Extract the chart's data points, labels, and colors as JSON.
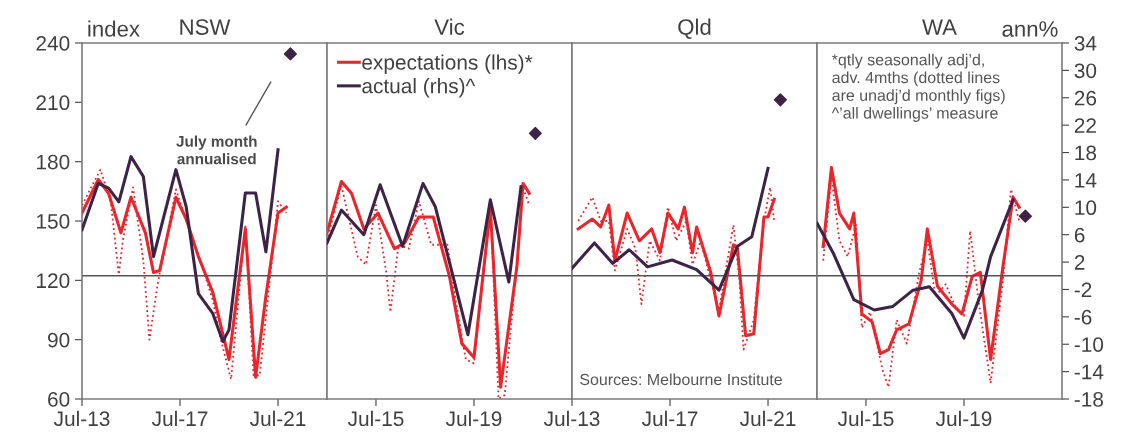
{
  "chart_data": [
    {
      "type": "line",
      "title": "NSW",
      "ylabel": "index",
      "tick_labels": [
        "x",
        "y"
      ],
      "grid": false,
      "legend": false,
      "xlim": [
        "2013-07",
        "2023-07"
      ],
      "xticks": [
        {
          "value": "2013-07",
          "label": "Jul-13"
        },
        {
          "value": "2017-07",
          "label": "Jul-17"
        },
        {
          "value": "2021-07",
          "label": "Jul-21"
        }
      ],
      "ylim": [
        60,
        240
      ],
      "yticks": [
        60,
        90,
        120,
        150,
        180,
        210,
        240
      ],
      "y2lim": [
        -18,
        34
      ],
      "ref_lines": [
        {
          "axis": "y2",
          "value": 0
        }
      ],
      "annotations": [
        "July month\nannualised"
      ],
      "series": [
        {
          "type": "line",
          "color": "#e8262b",
          "line_style": "solid",
          "x": [
            "2013-07",
            "2014-03",
            "2014-08",
            "2015-02",
            "2015-07",
            "2016-02",
            "2016-06",
            "2016-09",
            "2017-05",
            "2017-10",
            "2018-04",
            "2018-11",
            "2019-07",
            "2020-03",
            "2020-08",
            "2021-01",
            "2021-07",
            "2021-11"
          ],
          "values": [
            154,
            171,
            164,
            144,
            162,
            144,
            124,
            125,
            162,
            151,
            132,
            114,
            80,
            146,
            71,
            112,
            154,
            157
          ]
        },
        {
          "type": "line",
          "color": "#e8262b",
          "line_style": "dotted",
          "x": [
            "2013-07",
            "2014-04",
            "2014-09",
            "2015-01",
            "2015-03",
            "2015-08",
            "2016-01",
            "2016-04",
            "2016-08",
            "2017-05",
            "2017-11",
            "2018-05",
            "2018-11",
            "2019-03",
            "2019-08",
            "2020-03",
            "2020-07",
            "2020-10",
            "2021-03",
            "2021-07",
            "2021-11"
          ],
          "values": [
            158,
            176,
            160,
            123,
            140,
            167,
            130,
            90,
            118,
            166,
            147,
            130,
            110,
            90,
            70,
            148,
            72,
            72,
            120,
            160,
            154
          ]
        },
        {
          "type": "line",
          "axis": "y2",
          "color": "#3d2447",
          "line_style": "solid",
          "x": [
            "2013-07",
            "2014-03",
            "2014-08",
            "2015-01",
            "2015-07",
            "2016-01",
            "2016-06",
            "2017-05",
            "2017-10",
            "2018-04",
            "2018-11",
            "2019-04",
            "2019-07",
            "2020-03",
            "2020-08",
            "2021-01",
            "2021-07"
          ],
          "values": [
            6.7,
            13.5,
            12.8,
            10.8,
            17.4,
            14.5,
            2.8,
            15.5,
            10.1,
            -2.6,
            -5.5,
            -9.6,
            -7.9,
            12.1,
            12.1,
            3.5,
            18.4
          ]
        },
        {
          "type": "scatter",
          "axis": "y2",
          "marker": "diamond",
          "color": "#3d2447",
          "x": [
            "2022-01"
          ],
          "values": [
            32.4
          ]
        }
      ]
    },
    {
      "type": "line",
      "title": "Vic",
      "tick_labels": "x",
      "grid": false,
      "legend": "top left",
      "xlim": [
        "2013-07",
        "2023-07"
      ],
      "xticks": [
        {
          "value": "2015-07",
          "label": "Jul-15"
        },
        {
          "value": "2019-07",
          "label": "Jul-19"
        }
      ],
      "ylim": [
        60,
        240
      ],
      "y2lim": [
        -18,
        34
      ],
      "ref_lines": [
        {
          "axis": "y2",
          "value": 0
        }
      ],
      "series": [
        {
          "type": "line",
          "name": "expectations (lhs)*",
          "color": "#e8262b",
          "line_style": "solid",
          "x": [
            "2013-07",
            "2014-02",
            "2014-07",
            "2015-01",
            "2015-08",
            "2016-04",
            "2016-09",
            "2017-04",
            "2017-11",
            "2018-07",
            "2019-01",
            "2019-07",
            "2020-03",
            "2020-08",
            "2021-04",
            "2021-07",
            "2021-10"
          ],
          "values": [
            144,
            170,
            164,
            146,
            154,
            136,
            139,
            152,
            152,
            122,
            88,
            81,
            156,
            66,
            127,
            169,
            164
          ]
        },
        {
          "type": "line",
          "color": "#e8262b",
          "line_style": "dotted",
          "x": [
            "2013-07",
            "2014-02",
            "2014-06",
            "2014-10",
            "2015-02",
            "2015-07",
            "2015-12",
            "2016-02",
            "2016-06",
            "2016-11",
            "2017-04",
            "2017-10",
            "2018-06",
            "2018-10",
            "2019-03",
            "2019-07",
            "2020-03",
            "2020-07",
            "2020-10",
            "2021-05",
            "2021-07",
            "2021-10"
          ],
          "values": [
            140,
            168,
            150,
            132,
            128,
            158,
            124,
            104,
            138,
            136,
            160,
            138,
            138,
            110,
            80,
            78,
            160,
            60,
            62,
            140,
            167,
            158
          ]
        },
        {
          "type": "line",
          "name": "actual (rhs)^",
          "axis": "y2",
          "color": "#3d2447",
          "line_style": "solid",
          "x": [
            "2013-07",
            "2014-02",
            "2015-01",
            "2015-09",
            "2016-08",
            "2017-06",
            "2017-12",
            "2019-04",
            "2020-03",
            "2020-12",
            "2021-06"
          ],
          "values": [
            4.8,
            9.6,
            6.0,
            13.3,
            4.3,
            13.5,
            10.1,
            -8.6,
            11.1,
            -0.9,
            13.0
          ]
        },
        {
          "type": "scatter",
          "axis": "y2",
          "marker": "diamond",
          "color": "#3d2447",
          "x": [
            "2022-01"
          ],
          "values": [
            20.8
          ]
        }
      ]
    },
    {
      "type": "line",
      "title": "Qld",
      "tick_labels": "x",
      "grid": false,
      "legend": false,
      "xlim": [
        "2013-07",
        "2023-07"
      ],
      "xticks": [
        {
          "value": "2013-07",
          "label": "Jul-13"
        },
        {
          "value": "2017-07",
          "label": "Jul-17"
        },
        {
          "value": "2021-07",
          "label": "Jul-21"
        }
      ],
      "ylim": [
        60,
        240
      ],
      "y2lim": [
        -18,
        34
      ],
      "ref_lines": [
        {
          "axis": "y2",
          "value": 0
        }
      ],
      "annotations": [
        "Sources: Melbourne Institute"
      ],
      "series": [
        {
          "type": "line",
          "color": "#e8262b",
          "line_style": "solid",
          "x": [
            "2013-10",
            "2014-05",
            "2014-09",
            "2015-01",
            "2015-04",
            "2015-10",
            "2016-04",
            "2016-10",
            "2017-02",
            "2017-06",
            "2017-11",
            "2018-02",
            "2018-06",
            "2018-08",
            "2019-03",
            "2019-07",
            "2020-02",
            "2020-04",
            "2020-08",
            "2020-12",
            "2021-05",
            "2021-07",
            "2021-10"
          ],
          "values": [
            146,
            151,
            147,
            158,
            130,
            154,
            140,
            146,
            134,
            154,
            146,
            157,
            134,
            147,
            124,
            102,
            138,
            136,
            92,
            93,
            152,
            152,
            161
          ]
        },
        {
          "type": "line",
          "color": "#e8262b",
          "line_style": "dotted",
          "x": [
            "2013-10",
            "2014-05",
            "2014-09",
            "2015-01",
            "2015-04",
            "2015-10",
            "2016-02",
            "2016-05",
            "2016-09",
            "2017-02",
            "2017-06",
            "2017-10",
            "2018-03",
            "2018-06",
            "2018-10",
            "2019-03",
            "2019-07",
            "2020-02",
            "2020-05",
            "2020-07",
            "2020-12",
            "2021-05",
            "2021-08",
            "2021-10"
          ],
          "values": [
            150,
            162,
            150,
            150,
            125,
            146,
            136,
            108,
            140,
            130,
            157,
            140,
            150,
            128,
            140,
            120,
            105,
            148,
            120,
            85,
            100,
            150,
            167,
            150
          ]
        },
        {
          "type": "line",
          "axis": "y2",
          "color": "#3d2447",
          "line_style": "solid",
          "x": [
            "2013-07",
            "2014-06",
            "2015-03",
            "2015-11",
            "2016-08",
            "2017-08",
            "2018-08",
            "2019-07",
            "2020-04",
            "2020-11",
            "2021-07"
          ],
          "values": [
            1.1,
            4.8,
            1.8,
            3.8,
            1.3,
            2.3,
            0.9,
            -2.1,
            4.3,
            5.7,
            15.7
          ]
        },
        {
          "type": "scatter",
          "axis": "y2",
          "marker": "diamond",
          "color": "#3d2447",
          "x": [
            "2022-01"
          ],
          "values": [
            25.7
          ]
        }
      ]
    },
    {
      "type": "line",
      "title": "WA",
      "y2label": "ann%",
      "tick_labels": [
        "x",
        "y2"
      ],
      "grid": false,
      "legend": false,
      "xlim": [
        "2013-07",
        "2023-07"
      ],
      "xticks": [
        {
          "value": "2015-07",
          "label": "Jul-15"
        },
        {
          "value": "2019-07",
          "label": "Jul-19"
        }
      ],
      "ylim": [
        60,
        240
      ],
      "y2lim": [
        -18,
        34
      ],
      "y2ticks": [
        -18,
        -14,
        -10,
        -6,
        -2,
        2,
        6,
        10,
        14,
        18,
        22,
        26,
        30,
        34
      ],
      "ref_lines": [
        {
          "axis": "y2",
          "value": 0
        }
      ],
      "annotations": [
        "*qtly seasonally adj’d,\nadv. 4mths (dotted lines\nare unadj’d monthly figs)\n^’all dwellings’ measure"
      ],
      "series": [
        {
          "type": "line",
          "color": "#e8262b",
          "line_style": "solid",
          "x": [
            "2013-10",
            "2014-02",
            "2014-06",
            "2014-11",
            "2015-01",
            "2015-05",
            "2015-10",
            "2016-02",
            "2016-06",
            "2016-10",
            "2017-04",
            "2017-10",
            "2018-01",
            "2018-06",
            "2019-01",
            "2019-06",
            "2019-11",
            "2020-03",
            "2020-08",
            "2021-02",
            "2021-07",
            "2021-10"
          ],
          "values": [
            137,
            177,
            154,
            146,
            154,
            103,
            99,
            83,
            85,
            95,
            98,
            120,
            146,
            117,
            108,
            103,
            122,
            124,
            80,
            127,
            162,
            157
          ]
        },
        {
          "type": "line",
          "color": "#e8262b",
          "line_style": "dotted",
          "x": [
            "2013-10",
            "2014-02",
            "2014-06",
            "2014-10",
            "2015-02",
            "2015-05",
            "2015-09",
            "2016-03",
            "2016-06",
            "2016-10",
            "2017-03",
            "2017-09",
            "2018-01",
            "2018-05",
            "2018-10",
            "2019-03",
            "2019-07",
            "2019-10",
            "2020-02",
            "2020-08",
            "2021-02",
            "2021-06",
            "2021-10"
          ],
          "values": [
            130,
            172,
            140,
            132,
            148,
            96,
            104,
            75,
            66,
            100,
            88,
            124,
            140,
            112,
            118,
            106,
            102,
            145,
            110,
            68,
            120,
            166,
            150
          ]
        },
        {
          "type": "line",
          "axis": "y2",
          "color": "#3d2447",
          "line_style": "solid",
          "x": [
            "2013-07",
            "2014-03",
            "2015-01",
            "2015-11",
            "2016-08",
            "2017-06",
            "2018-02",
            "2019-01",
            "2019-07",
            "2020-04",
            "2020-08",
            "2021-07"
          ],
          "values": [
            7.7,
            3.3,
            -3.5,
            -5.0,
            -4.5,
            -2.1,
            -1.6,
            -5.5,
            -9.1,
            -2.1,
            2.8,
            11.1
          ]
        },
        {
          "type": "scatter",
          "axis": "y2",
          "marker": "diamond",
          "color": "#3d2447",
          "x": [
            "2022-01"
          ],
          "values": [
            8.7
          ]
        }
      ]
    }
  ]
}
